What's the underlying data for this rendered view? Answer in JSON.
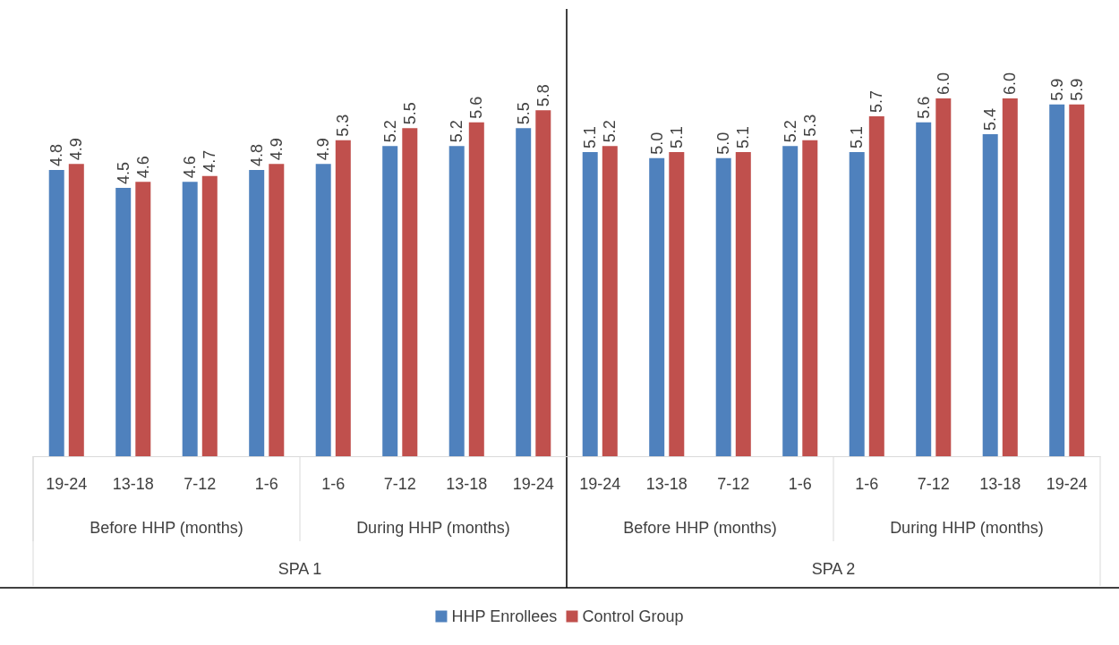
{
  "chart_data": {
    "type": "bar",
    "categories": [
      "19-24",
      "13-18",
      "7-12",
      "1-6",
      "1-6",
      "7-12",
      "13-18",
      "19-24",
      "19-24",
      "13-18",
      "7-12",
      "1-6",
      "1-6",
      "7-12",
      "13-18",
      "19-24"
    ],
    "annotations": [
      "Before HHP (months)",
      "During HHP (months)",
      "Before HHP (months)",
      "During HHP (months)",
      "SPA 1",
      "SPA 2"
    ],
    "series": [
      {
        "name": "HHP Enrollees",
        "color": "#4f81bd",
        "values": [
          4.8,
          4.5,
          4.6,
          4.8,
          4.9,
          5.2,
          5.2,
          5.5,
          5.1,
          5.0,
          5.0,
          5.2,
          5.1,
          5.6,
          5.4,
          5.9
        ],
        "value_labels": [
          "4.8",
          "4.5",
          "4.6",
          "4.8",
          "4.9",
          "5.2",
          "5.2",
          "5.5",
          "5.1",
          "5.0",
          "5.0",
          "5.2",
          "5.1",
          "5.6",
          "5.4",
          "5.9"
        ]
      },
      {
        "name": "Control Group",
        "color": "#c0504d",
        "values": [
          4.9,
          4.6,
          4.7,
          4.9,
          5.3,
          5.5,
          5.6,
          5.8,
          5.2,
          5.1,
          5.1,
          5.3,
          5.7,
          6.0,
          6.0,
          5.9
        ],
        "value_labels": [
          "4.9",
          "4.6",
          "4.7",
          "4.9",
          "5.3",
          "5.5",
          "5.6",
          "5.8",
          "5.2",
          "5.1",
          "5.1",
          "5.3",
          "5.7",
          "6.0",
          "6.0",
          "5.9"
        ]
      }
    ],
    "legend": "bottom"
  }
}
